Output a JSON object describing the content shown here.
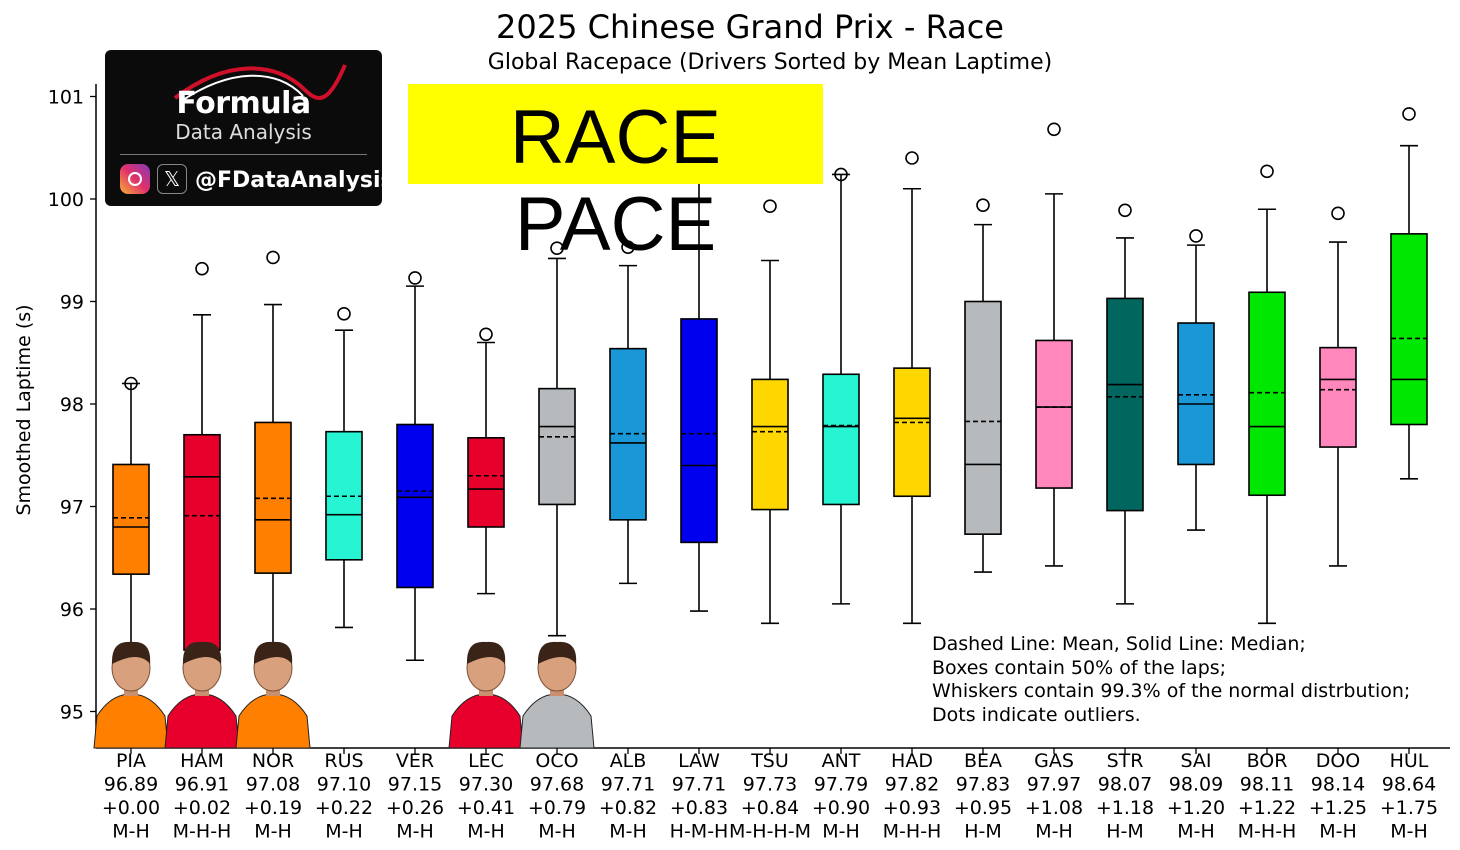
{
  "title": "2025 Chinese Grand Prix - Race",
  "subtitle": "Global Racepace (Drivers Sorted by Mean Laptime)",
  "logo": {
    "name": "Formula",
    "subname": "Data Analysis",
    "handle": "@FDataAnalysis",
    "icons": [
      "instagram-icon",
      "x-icon"
    ]
  },
  "banner": {
    "text": "RACE PACE",
    "color": "#ffff00"
  },
  "note": [
    "Dashed Line: Mean, Solid Line: Median;",
    "Boxes contain 50% of the laps;",
    "Whiskers contain 99.3% of the normal distrbution;",
    "Dots indicate outliers."
  ],
  "chart_data": {
    "type": "box",
    "ylabel": "Smoothed Laptime (s)",
    "ylim": [
      94.75,
      101.15
    ],
    "yticks": [
      95,
      96,
      97,
      98,
      99,
      100,
      101
    ],
    "series": [
      {
        "driver": "PIA",
        "mean": "96.89",
        "gap": "+0.00",
        "tyres": "M-H",
        "color": "#ff8000",
        "q1": 96.34,
        "median": 96.8,
        "q3": 97.41,
        "whisker_low": 95.6,
        "whisker_high": 98.2,
        "mean_value": 96.89,
        "outliers": [
          98.2
        ]
      },
      {
        "driver": "HAM",
        "mean": "96.91",
        "gap": "+0.02",
        "tyres": "M-H-H",
        "color": "#e8002d",
        "q1": 95.6,
        "median": 97.29,
        "q3": 97.7,
        "whisker_low": 95.6,
        "whisker_high": 98.87,
        "mean_value": 96.91,
        "outliers": [
          99.32
        ]
      },
      {
        "driver": "NOR",
        "mean": "97.08",
        "gap": "+0.19",
        "tyres": "M-H",
        "color": "#ff8000",
        "q1": 96.35,
        "median": 96.87,
        "q3": 97.82,
        "whisker_low": 95.6,
        "whisker_high": 98.97,
        "mean_value": 97.08,
        "outliers": [
          99.43
        ]
      },
      {
        "driver": "RUS",
        "mean": "97.10",
        "gap": "+0.22",
        "tyres": "M-H",
        "color": "#27f4d2",
        "q1": 96.48,
        "median": 96.92,
        "q3": 97.73,
        "whisker_low": 95.82,
        "whisker_high": 98.72,
        "mean_value": 97.1,
        "outliers": [
          98.88
        ]
      },
      {
        "driver": "VER",
        "mean": "97.15",
        "gap": "+0.26",
        "tyres": "M-H",
        "color": "#0000ee",
        "q1": 96.21,
        "median": 97.09,
        "q3": 97.8,
        "whisker_low": 95.5,
        "whisker_high": 99.15,
        "mean_value": 97.15,
        "outliers": [
          99.23
        ]
      },
      {
        "driver": "LEC",
        "mean": "97.30",
        "gap": "+0.41",
        "tyres": "M-H",
        "color": "#e8002d",
        "q1": 96.8,
        "median": 97.17,
        "q3": 97.67,
        "whisker_low": 96.15,
        "whisker_high": 98.6,
        "mean_value": 97.3,
        "outliers": [
          98.68
        ]
      },
      {
        "driver": "OCO",
        "mean": "97.68",
        "gap": "+0.79",
        "tyres": "M-H",
        "color": "#b6babd",
        "q1": 97.02,
        "median": 97.78,
        "q3": 98.15,
        "whisker_low": 95.74,
        "whisker_high": 99.42,
        "mean_value": 97.68,
        "outliers": [
          99.52
        ]
      },
      {
        "driver": "ALB",
        "mean": "97.71",
        "gap": "+0.82",
        "tyres": "M-H",
        "color": "#1997d6",
        "q1": 96.87,
        "median": 97.62,
        "q3": 98.54,
        "whisker_low": 96.25,
        "whisker_high": 99.35,
        "mean_value": 97.71,
        "outliers": [
          99.53
        ]
      },
      {
        "driver": "LAW",
        "mean": "97.71",
        "gap": "+0.83",
        "tyres": "H-M-H",
        "color": "#0000ee",
        "q1": 96.65,
        "median": 97.4,
        "q3": 98.83,
        "whisker_low": 95.98,
        "whisker_high": 100.25,
        "mean_value": 97.71,
        "outliers": []
      },
      {
        "driver": "TSU",
        "mean": "97.73",
        "gap": "+0.84",
        "tyres": "M-H-H-M",
        "color": "#ffd700",
        "q1": 96.97,
        "median": 97.78,
        "q3": 98.24,
        "whisker_low": 95.86,
        "whisker_high": 99.4,
        "mean_value": 97.73,
        "outliers": [
          99.93
        ]
      },
      {
        "driver": "ANT",
        "mean": "97.79",
        "gap": "+0.90",
        "tyres": "M-H",
        "color": "#27f4d2",
        "q1": 97.02,
        "median": 97.78,
        "q3": 98.29,
        "whisker_low": 96.05,
        "whisker_high": 100.24,
        "mean_value": 97.79,
        "outliers": [
          100.24
        ]
      },
      {
        "driver": "HAD",
        "mean": "97.82",
        "gap": "+0.93",
        "tyres": "M-H-H",
        "color": "#ffd700",
        "q1": 97.1,
        "median": 97.86,
        "q3": 98.35,
        "whisker_low": 95.86,
        "whisker_high": 100.1,
        "mean_value": 97.82,
        "outliers": [
          100.4
        ]
      },
      {
        "driver": "BEA",
        "mean": "97.83",
        "gap": "+0.95",
        "tyres": "H-M",
        "color": "#b6babd",
        "q1": 96.73,
        "median": 97.41,
        "q3": 99.0,
        "whisker_low": 96.36,
        "whisker_high": 99.75,
        "mean_value": 97.83,
        "outliers": [
          99.94
        ]
      },
      {
        "driver": "GAS",
        "mean": "97.97",
        "gap": "+1.08",
        "tyres": "M-H",
        "color": "#ff87bc",
        "q1": 97.18,
        "median": 97.97,
        "q3": 98.62,
        "whisker_low": 96.42,
        "whisker_high": 100.05,
        "mean_value": 97.97,
        "outliers": [
          100.68
        ]
      },
      {
        "driver": "STR",
        "mean": "98.07",
        "gap": "+1.18",
        "tyres": "H-M",
        "color": "#00665e",
        "q1": 96.96,
        "median": 98.19,
        "q3": 99.03,
        "whisker_low": 96.05,
        "whisker_high": 99.62,
        "mean_value": 98.07,
        "outliers": [
          99.89
        ]
      },
      {
        "driver": "SAI",
        "mean": "98.09",
        "gap": "+1.20",
        "tyres": "M-H",
        "color": "#1997d6",
        "q1": 97.41,
        "median": 98.0,
        "q3": 98.79,
        "whisker_low": 96.77,
        "whisker_high": 99.55,
        "mean_value": 98.09,
        "outliers": [
          99.64
        ]
      },
      {
        "driver": "BOR",
        "mean": "98.11",
        "gap": "+1.22",
        "tyres": "M-H-H",
        "color": "#00e701",
        "q1": 97.11,
        "median": 97.78,
        "q3": 99.09,
        "whisker_low": 95.86,
        "whisker_high": 99.9,
        "mean_value": 98.11,
        "outliers": [
          100.27
        ]
      },
      {
        "driver": "DOO",
        "mean": "98.14",
        "gap": "+1.25",
        "tyres": "M-H",
        "color": "#ff87bc",
        "q1": 97.58,
        "median": 98.24,
        "q3": 98.55,
        "whisker_low": 96.42,
        "whisker_high": 99.58,
        "mean_value": 98.14,
        "outliers": [
          99.86
        ]
      },
      {
        "driver": "HUL",
        "mean": "98.64",
        "gap": "+1.75",
        "tyres": "M-H",
        "color": "#00e701",
        "q1": 97.8,
        "median": 98.24,
        "q3": 99.66,
        "whisker_low": 97.27,
        "whisker_high": 100.52,
        "mean_value": 98.64,
        "outliers": [
          100.83
        ]
      }
    ],
    "photos": [
      "PIA",
      "HAM",
      "NOR",
      "LEC",
      "OCO"
    ]
  }
}
